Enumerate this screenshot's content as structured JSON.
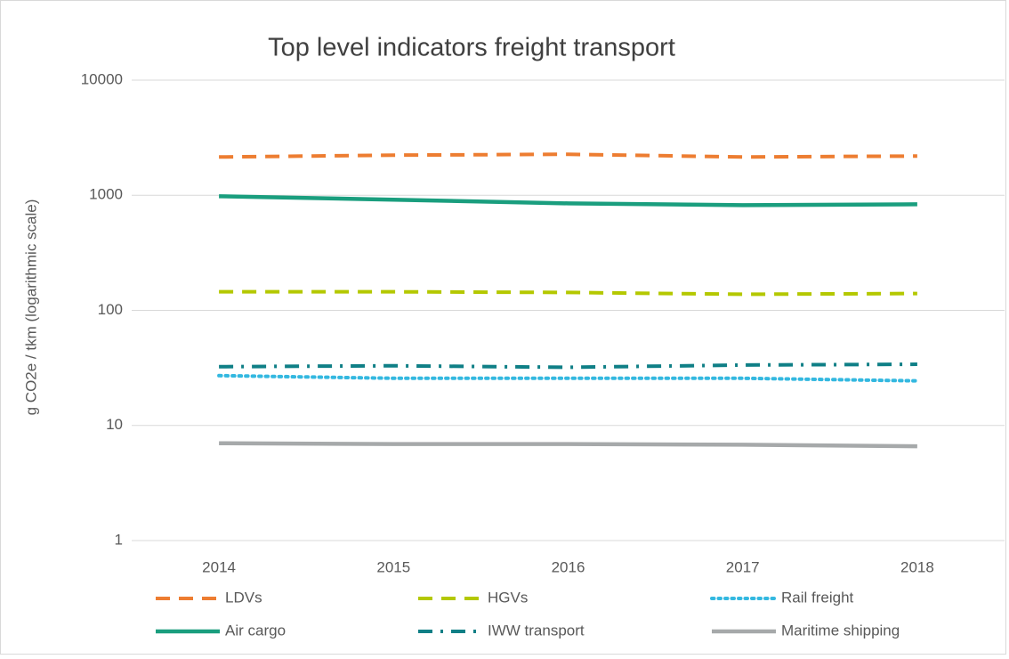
{
  "chart_data": {
    "type": "line",
    "title": "Top level indicators freight transport",
    "y_label": "g CO2e / tkm (logarithmic scale)",
    "categories": [
      "2014",
      "2015",
      "2016",
      "2017",
      "2018"
    ],
    "log_scale": true,
    "grid": true,
    "legend": "bottom",
    "ylim": [
      1,
      10000
    ],
    "yticks": [
      1,
      10,
      100,
      1000,
      10000
    ],
    "series": [
      {
        "name": "LDVs",
        "color": "#ed7d31",
        "style": "dashed",
        "values": [
          2150,
          2230,
          2270,
          2150,
          2190
        ]
      },
      {
        "name": "HGVs",
        "color": "#b4c800",
        "style": "dashed",
        "values": [
          145,
          145,
          143,
          138,
          140
        ]
      },
      {
        "name": "Rail freight",
        "color": "#33b8e0",
        "style": "dotted",
        "values": [
          27.1,
          25.7,
          25.7,
          25.7,
          24.4
        ]
      },
      {
        "name": "Air cargo",
        "color": "#1a9e7e",
        "style": "solid",
        "values": [
          980,
          915,
          850,
          820,
          835
        ]
      },
      {
        "name": "IWW transport",
        "color": "#0f7f86",
        "style": "dash-dot",
        "values": [
          32.4,
          33,
          32,
          33.5,
          34
        ]
      },
      {
        "name": "Maritime shipping",
        "color": "#a6a9aa",
        "style": "solid",
        "values": [
          7.0,
          6.9,
          6.9,
          6.8,
          6.6
        ]
      }
    ]
  }
}
